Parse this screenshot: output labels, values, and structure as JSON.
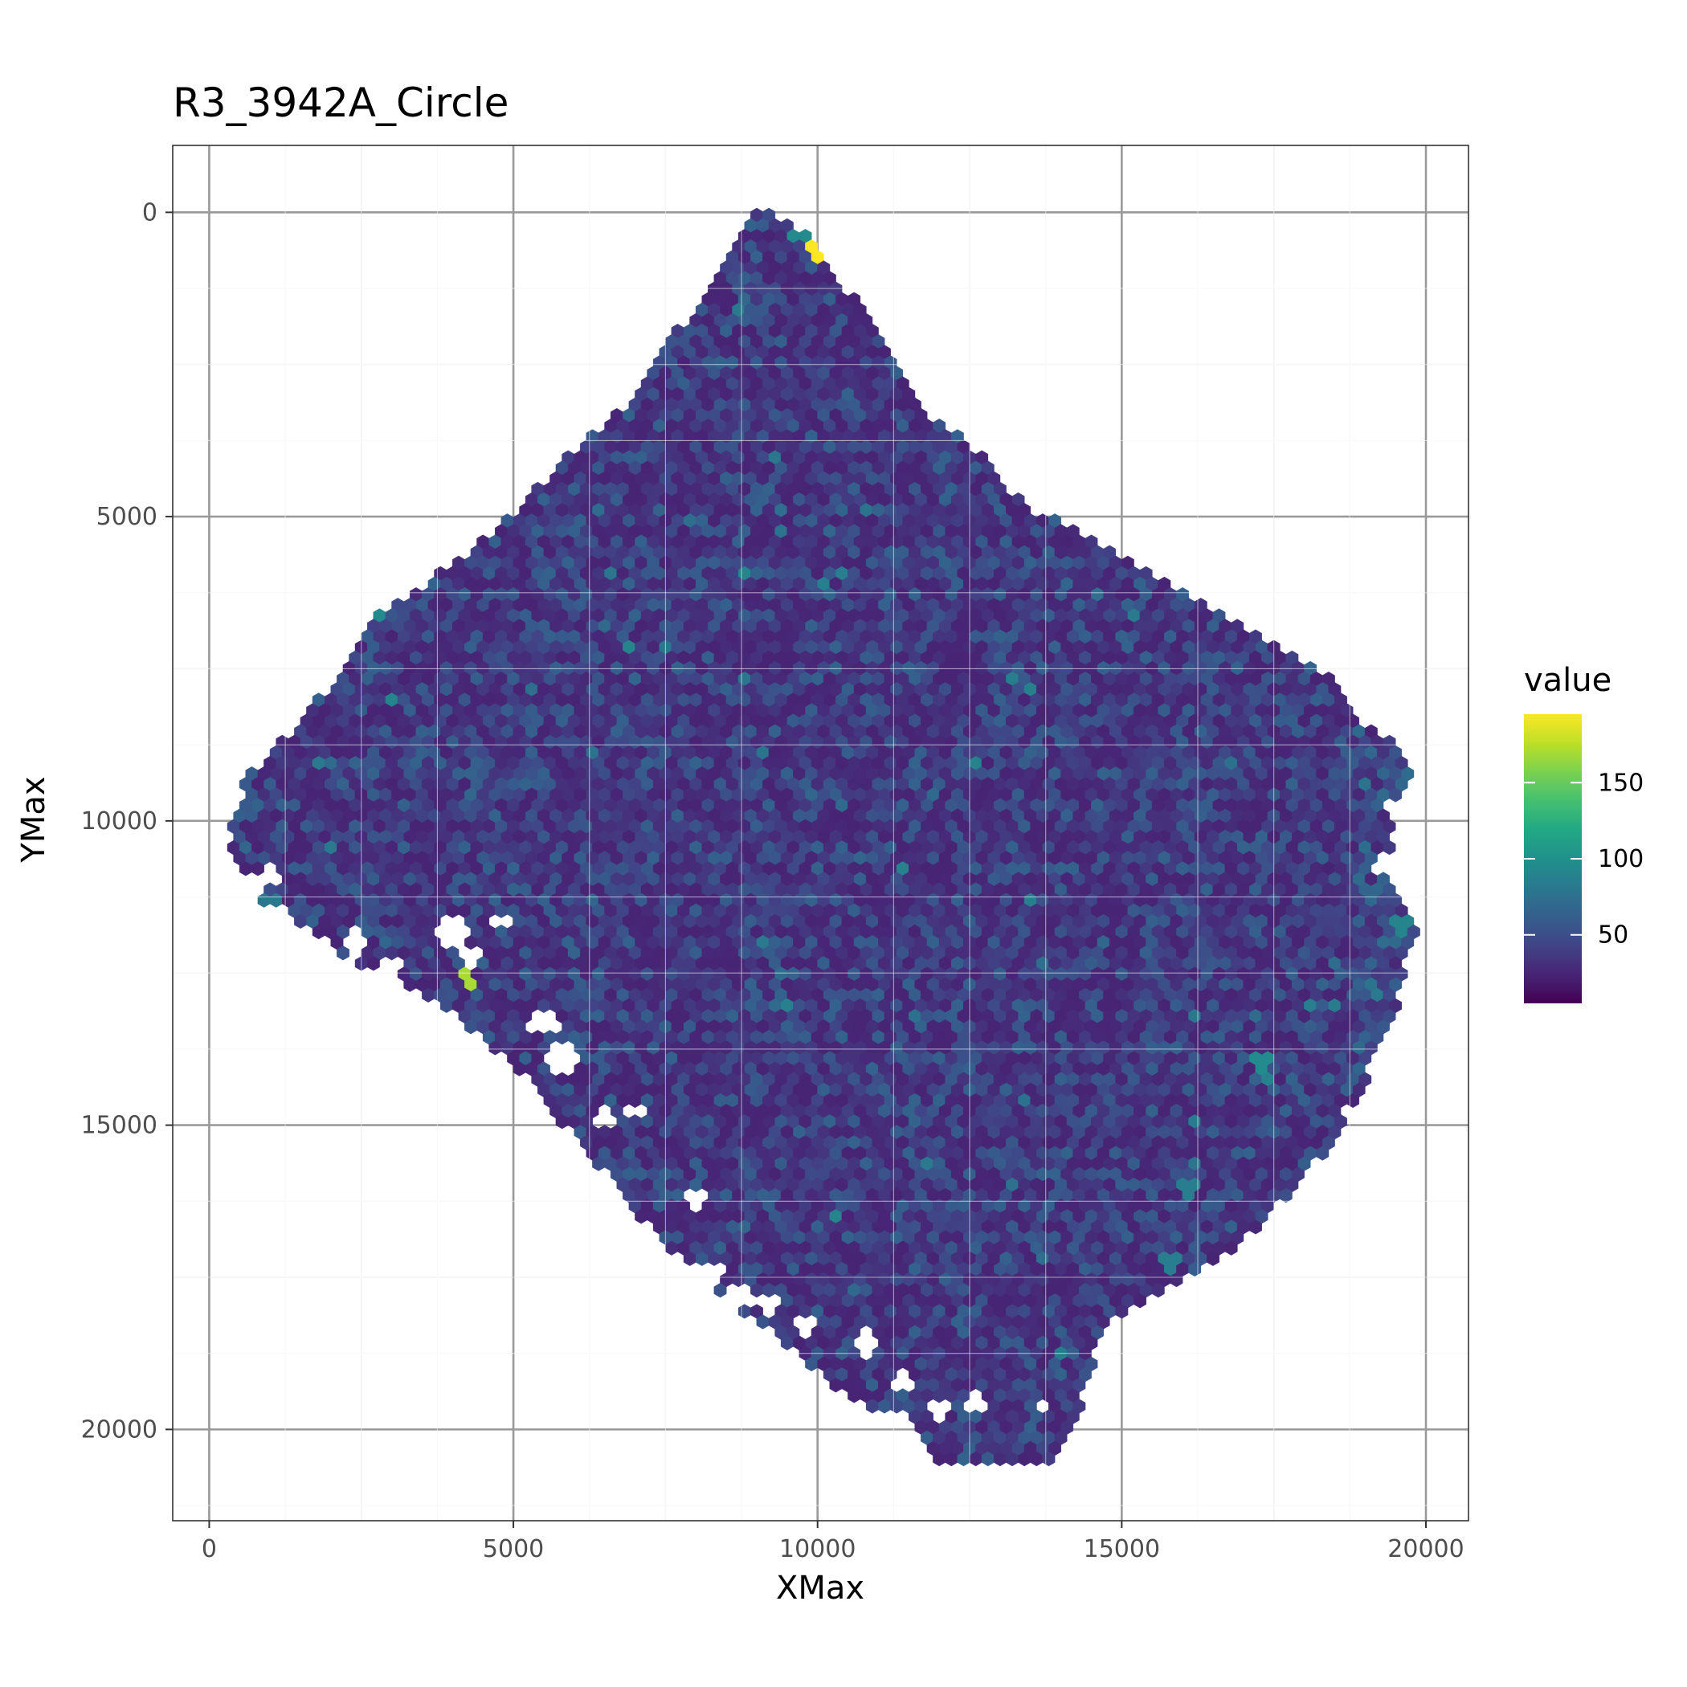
{
  "chart_data": {
    "type": "heatmap",
    "subtype": "hexbin",
    "title": "R3_3942A_Circle",
    "xlabel": "XMax",
    "ylabel": "YMax",
    "xlim": [
      -600,
      20700
    ],
    "ylim": [
      21500,
      -1100
    ],
    "y_reversed": true,
    "x_ticks": [
      0,
      5000,
      10000,
      15000,
      20000
    ],
    "x_tick_labels": [
      "0",
      "5000",
      "10000",
      "15000",
      "20000"
    ],
    "y_ticks": [
      0,
      5000,
      10000,
      15000,
      20000
    ],
    "y_tick_labels": [
      "0",
      "5000",
      "10000",
      "15000",
      "20000"
    ],
    "grid": true,
    "theme": "bw",
    "hex_spacing": 200,
    "tissue_outline": [
      [
        9000,
        -150
      ],
      [
        9900,
        350
      ],
      [
        10300,
        1000
      ],
      [
        11200,
        2200
      ],
      [
        11700,
        3200
      ],
      [
        12700,
        4000
      ],
      [
        13400,
        4800
      ],
      [
        14200,
        5200
      ],
      [
        15200,
        5800
      ],
      [
        16400,
        6400
      ],
      [
        17300,
        7000
      ],
      [
        18300,
        7500
      ],
      [
        19000,
        8400
      ],
      [
        19800,
        9000
      ],
      [
        19500,
        10000
      ],
      [
        19400,
        11000
      ],
      [
        19900,
        11700
      ],
      [
        19700,
        12300
      ],
      [
        19500,
        13200
      ],
      [
        18900,
        14500
      ],
      [
        18300,
        15500
      ],
      [
        17700,
        16200
      ],
      [
        16800,
        17100
      ],
      [
        15500,
        17800
      ],
      [
        14700,
        18300
      ],
      [
        14500,
        19200
      ],
      [
        14000,
        20300
      ],
      [
        13700,
        20600
      ],
      [
        12000,
        20500
      ],
      [
        11500,
        19800
      ],
      [
        10500,
        19500
      ],
      [
        9500,
        18600
      ],
      [
        8500,
        17900
      ],
      [
        7500,
        17000
      ],
      [
        6000,
        15200
      ],
      [
        5000,
        14000
      ],
      [
        3800,
        13000
      ],
      [
        2200,
        12200
      ],
      [
        600,
        11100
      ],
      [
        250,
        10500
      ],
      [
        600,
        9300
      ],
      [
        1500,
        8400
      ],
      [
        2800,
        6600
      ],
      [
        4300,
        5600
      ],
      [
        5700,
        4200
      ],
      [
        7000,
        3000
      ],
      [
        7500,
        2200
      ],
      [
        8300,
        1200
      ]
    ],
    "holes": [
      [
        [
          700,
          11000
        ],
        180
      ],
      [
        [
          1200,
          11500
        ],
        160
      ],
      [
        [
          2400,
          12000
        ],
        260
      ],
      [
        [
          3000,
          12400
        ],
        220
      ],
      [
        [
          3300,
          12900
        ],
        200
      ],
      [
        [
          4000,
          11800
        ],
        260
      ],
      [
        [
          4300,
          12300
        ],
        200
      ],
      [
        [
          4800,
          11700
        ],
        120
      ],
      [
        [
          5500,
          13300
        ],
        240
      ],
      [
        [
          5800,
          13900
        ],
        220
      ],
      [
        [
          4700,
          13900
        ],
        140
      ],
      [
        [
          6500,
          14900
        ],
        200
      ],
      [
        [
          7000,
          14800
        ],
        140
      ],
      [
        [
          8000,
          16200
        ],
        180
      ],
      [
        [
          7300,
          17200
        ],
        200
      ],
      [
        [
          8200,
          17500
        ],
        260
      ],
      [
        [
          8700,
          17800
        ],
        240
      ],
      [
        [
          9200,
          18000
        ],
        180
      ],
      [
        [
          9800,
          18300
        ],
        160
      ],
      [
        [
          10800,
          18600
        ],
        200
      ],
      [
        [
          11400,
          19200
        ],
        220
      ],
      [
        [
          12000,
          19700
        ],
        180
      ],
      [
        [
          12600,
          19600
        ],
        160
      ],
      [
        [
          13700,
          19600
        ],
        120
      ],
      [
        [
          8900,
          11800
        ],
        100
      ],
      [
        [
          19500,
          9800
        ],
        120
      ],
      [
        [
          19300,
          10700
        ],
        140
      ],
      [
        [
          18800,
          14800
        ],
        160
      ],
      [
        [
          1000,
          10900
        ],
        140
      ]
    ],
    "hotspots": [
      {
        "x": 9950,
        "y": 650,
        "value": 195
      },
      {
        "x": 4250,
        "y": 12600,
        "value": 170
      },
      {
        "x": 9700,
        "y": 300,
        "value": 95
      },
      {
        "x": 2850,
        "y": 6650,
        "value": 95
      },
      {
        "x": 17300,
        "y": 14000,
        "value": 95
      },
      {
        "x": 19600,
        "y": 11700,
        "value": 90
      },
      {
        "x": 8800,
        "y": 5900,
        "value": 90
      },
      {
        "x": 16100,
        "y": 16100,
        "value": 85
      },
      {
        "x": 15800,
        "y": 17300,
        "value": 85
      },
      {
        "x": 1000,
        "y": 11300,
        "value": 80
      }
    ],
    "value_typical_range": [
      10,
      65
    ],
    "legend": {
      "title": "value",
      "colormap": "viridis",
      "domain": [
        5,
        195
      ],
      "ticks": [
        50,
        100,
        150
      ],
      "tick_labels": [
        "50",
        "100",
        "150"
      ],
      "placement": "right"
    }
  }
}
